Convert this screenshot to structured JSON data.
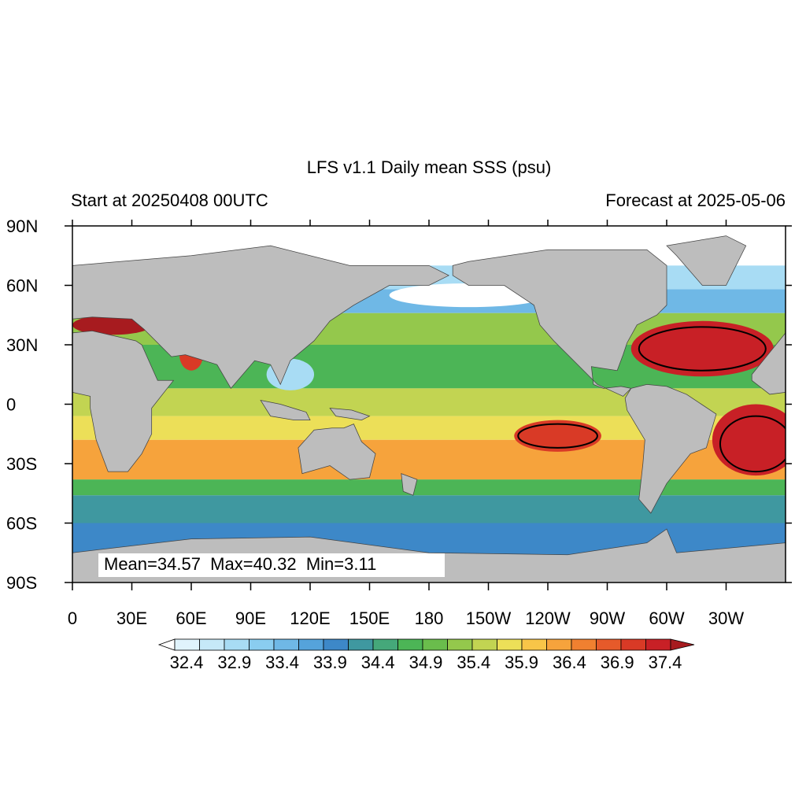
{
  "title": "LFS v1.1 Daily mean SSS (psu)",
  "subtitle_left": "Start at 20250408 00UTC",
  "subtitle_right": "Forecast at 2025-05-06",
  "annotation": "Mean=34.57  Max=40.32  Min=3.11",
  "x_tick_labels": [
    "0",
    "30E",
    "60E",
    "90E",
    "120E",
    "150E",
    "180",
    "150W",
    "120W",
    "90W",
    "60W",
    "30W"
  ],
  "y_tick_labels": [
    "90N",
    "60N",
    "30N",
    "0",
    "30S",
    "60S",
    "90S"
  ],
  "colorbar": {
    "labels": [
      32.4,
      32.9,
      33.4,
      33.9,
      34.4,
      34.9,
      35.4,
      35.9,
      36.4,
      36.9,
      37.4
    ],
    "colors": [
      "#ffffff",
      "#e0f3fc",
      "#c6e9f8",
      "#a8dcf4",
      "#8acdf0",
      "#6fb8e6",
      "#55a3db",
      "#3d88c8",
      "#3f98a0",
      "#45a87a",
      "#4cb556",
      "#6abd4c",
      "#94c84c",
      "#c2d452",
      "#ecdf58",
      "#f8c548",
      "#f6a33c",
      "#f08030",
      "#e65a2a",
      "#d93a26",
      "#c82026",
      "#a71b1f"
    ]
  }
}
